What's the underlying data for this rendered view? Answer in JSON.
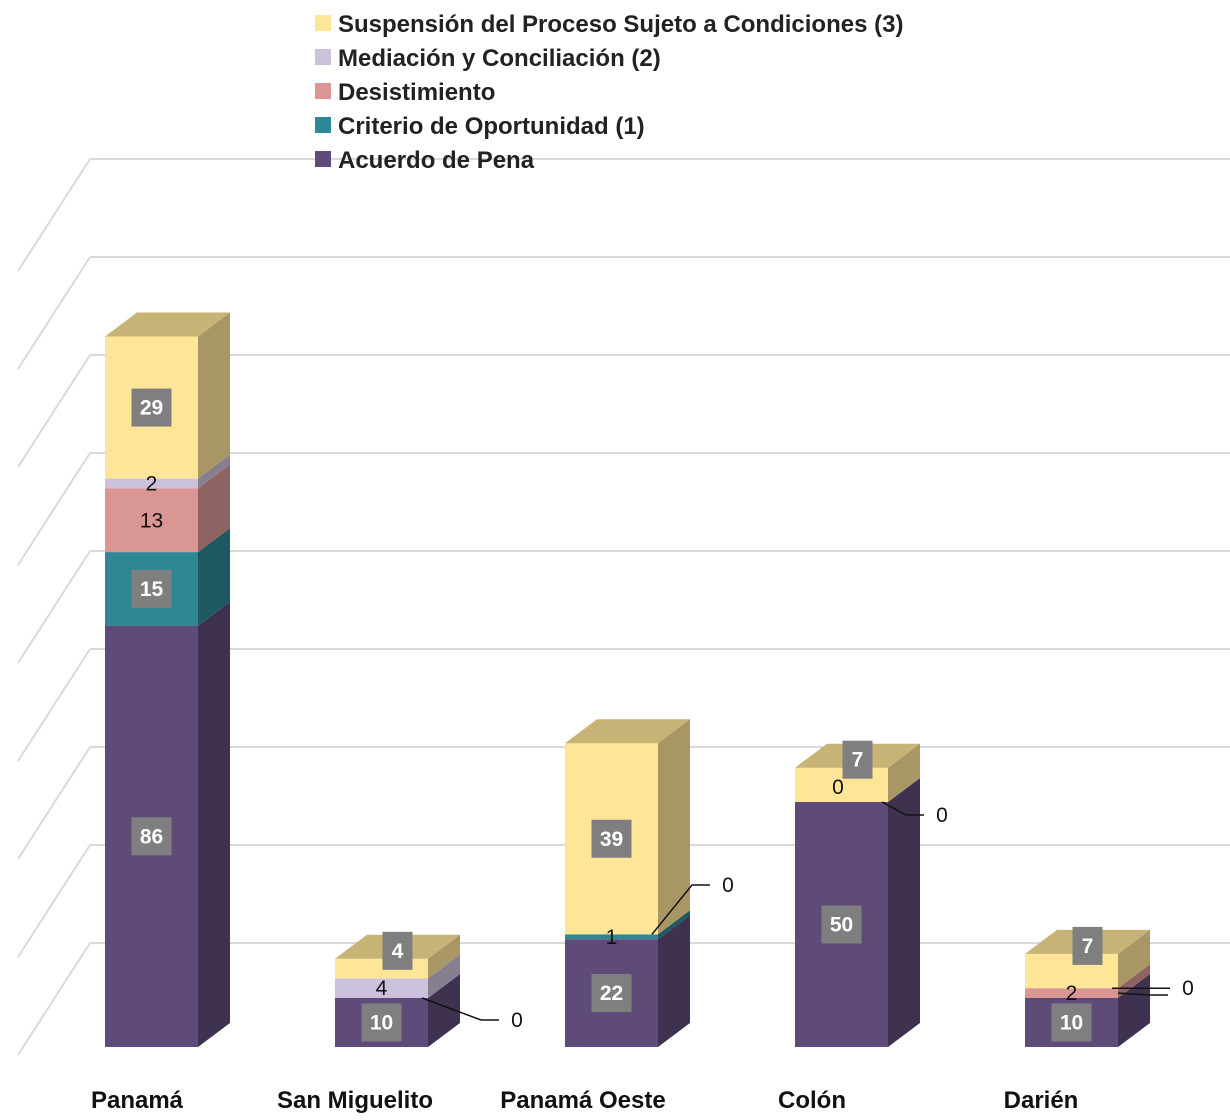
{
  "chart_data": {
    "type": "bar",
    "stacked": true,
    "three_d": true,
    "title": "",
    "xlabel": "",
    "ylabel": "",
    "ylim": [
      0,
      160
    ],
    "grid": true,
    "legend_position": "top",
    "categories": [
      "Panamá",
      "San Miguelito",
      "Panamá Oeste",
      "Colón",
      "Darién"
    ],
    "series": [
      {
        "name": "Acuerdo de Pena",
        "color": "#5f4b7a",
        "values": [
          86,
          10,
          22,
          50,
          10
        ],
        "label_style": [
          "box",
          "box",
          "box",
          "box",
          "box"
        ]
      },
      {
        "name": "Criterio de Oportunidad (1)",
        "color": "#2e8795",
        "values": [
          15,
          0,
          1,
          0,
          0
        ],
        "label_style": [
          "box",
          "plain",
          "plain",
          "plain",
          "plain"
        ]
      },
      {
        "name": "Desistimiento",
        "color": "#d99694",
        "values": [
          13,
          0,
          0,
          0,
          2
        ],
        "label_style": [
          "plain",
          "plain",
          "plain",
          "plain",
          "plain"
        ]
      },
      {
        "name": "Mediación y Conciliación (2)",
        "color": "#ccc1da",
        "values": [
          2,
          4,
          0,
          0,
          0
        ],
        "label_style": [
          "plain",
          "plain",
          "plain",
          "box",
          "plain"
        ]
      },
      {
        "name": "Suspensión del Proceso Sujeto a Condiciones (3)",
        "color": "#ffe597",
        "values": [
          29,
          4,
          39,
          7,
          7
        ],
        "label_style": [
          "box",
          "box",
          "box",
          "box",
          "box"
        ]
      }
    ],
    "visible_labels": [
      [
        true,
        true,
        true,
        true,
        true
      ],
      [
        true,
        false,
        true,
        false,
        false
      ],
      [
        true,
        false,
        false,
        false,
        true
      ],
      [
        true,
        true,
        false,
        true,
        false
      ],
      [
        true,
        true,
        true,
        true,
        true
      ]
    ],
    "zero_labels": [
      {
        "category": 1,
        "series": 1,
        "text": "0"
      },
      {
        "category": 2,
        "series": 2,
        "text": "0"
      },
      {
        "category": 3,
        "series": 1,
        "text": "0"
      },
      {
        "category": 3,
        "series": 2,
        "text": "0"
      },
      {
        "category": 4,
        "series": 3,
        "text": "0"
      }
    ]
  }
}
